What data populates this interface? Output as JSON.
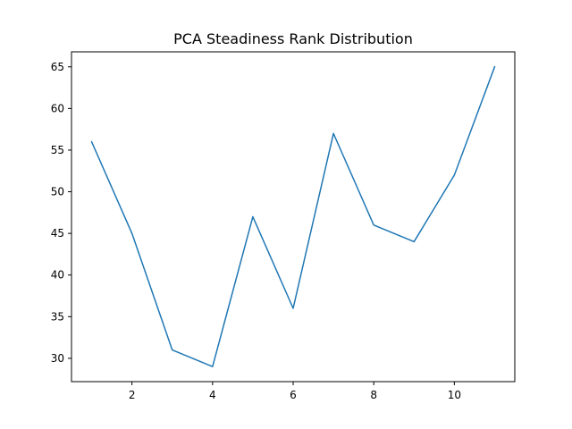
{
  "chart_data": {
    "type": "line",
    "title": "PCA Steadiness Rank Distribution",
    "xlabel": "",
    "ylabel": "",
    "x": [
      1,
      2,
      3,
      4,
      5,
      6,
      7,
      8,
      9,
      10,
      11
    ],
    "series": [
      {
        "values": [
          56,
          45,
          31,
          29,
          47,
          36,
          57,
          46,
          44,
          52,
          65
        ],
        "color": "#1f77b4"
      }
    ],
    "xlim": [
      0.5,
      11.5
    ],
    "ylim": [
      27.2,
      66.8
    ],
    "xticks": [
      2,
      4,
      6,
      8,
      10
    ],
    "yticks": [
      30,
      35,
      40,
      45,
      50,
      55,
      60,
      65
    ],
    "grid": false,
    "legend": "none"
  }
}
